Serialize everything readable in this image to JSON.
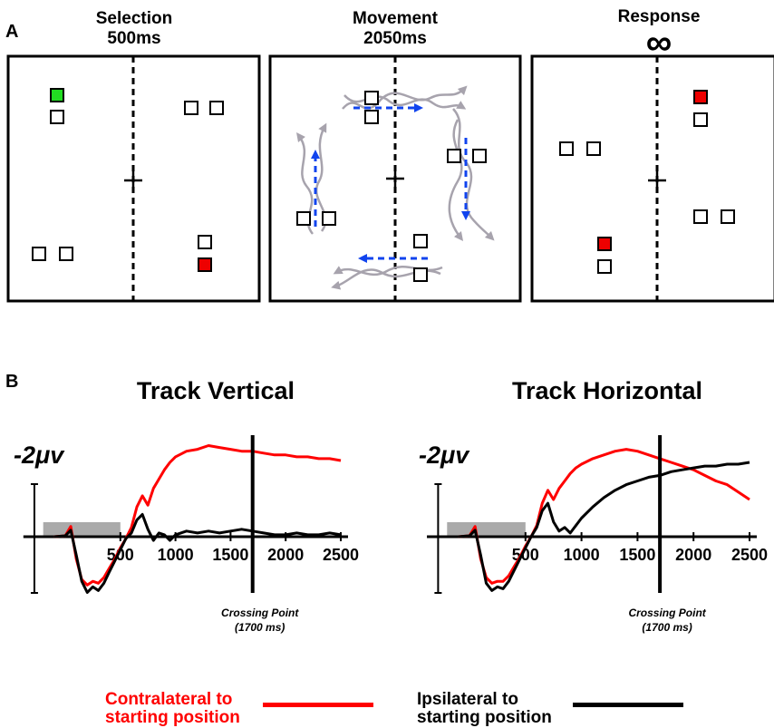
{
  "panel_a": {
    "label": "A",
    "panels": [
      {
        "title": "Selection",
        "duration": "500ms"
      },
      {
        "title": "Movement",
        "duration": "2050ms"
      },
      {
        "title": "Response",
        "duration": "∞"
      }
    ]
  },
  "panel_b": {
    "label": "B",
    "plots": [
      {
        "title": "Track Vertical",
        "scale_label": "-2μv",
        "x_ticks": [
          "500",
          "1000",
          "1500",
          "2000",
          "2500"
        ],
        "annotation_line1": "Crossing Point",
        "annotation_line2": "(1700 ms)"
      },
      {
        "title": "Track Horizontal",
        "scale_label": "-2μv",
        "x_ticks": [
          "500",
          "1000",
          "1500",
          "2000",
          "2500"
        ],
        "annotation_line1": "Crossing Point",
        "annotation_line2": "(1700 ms)"
      }
    ]
  },
  "legend": {
    "contra_line1": "Contralateral to",
    "contra_line2": "starting position",
    "ipsi_line1": "Ipsilateral to",
    "ipsi_line2": "starting position"
  },
  "colors": {
    "contralateral": "#ff0000",
    "ipsilateral": "#000000",
    "target_green": "#22dd22",
    "target_red": "#ee0000",
    "movement_arrow": "#1144ee",
    "trajectory": "#a7a3ad",
    "gray_bar": "#aaaaaa"
  },
  "chart_data": [
    {
      "type": "line",
      "title": "Track Vertical",
      "ylabel": "-2μv",
      "x_ticks": [
        500,
        1000,
        1500,
        2000,
        2500
      ],
      "xlim": [
        -200,
        2500
      ],
      "marker_x": 1700,
      "series": [
        {
          "name": "Contralateral to starting position",
          "x": [
            -100,
            0,
            50,
            100,
            150,
            200,
            250,
            300,
            350,
            400,
            450,
            500,
            550,
            600,
            650,
            700,
            750,
            800,
            850,
            900,
            950,
            1000,
            1100,
            1200,
            1300,
            1400,
            1500,
            1600,
            1700,
            1800,
            1900,
            2000,
            2100,
            2200,
            2300,
            2400,
            2500
          ],
          "y": [
            0,
            0.05,
            0.55,
            -1.2,
            -2.3,
            -2.6,
            -2.4,
            -2.5,
            -2.2,
            -1.7,
            -1.2,
            -0.6,
            -0.1,
            0.5,
            1.6,
            2.2,
            1.7,
            2.6,
            3.1,
            3.6,
            4.0,
            4.3,
            4.6,
            4.7,
            4.9,
            4.8,
            4.7,
            4.6,
            4.6,
            4.5,
            4.4,
            4.4,
            4.3,
            4.3,
            4.2,
            4.2,
            4.1
          ]
        },
        {
          "name": "Ipsilateral to starting position",
          "x": [
            -100,
            0,
            50,
            100,
            150,
            200,
            250,
            300,
            350,
            400,
            450,
            500,
            550,
            600,
            650,
            700,
            750,
            800,
            850,
            900,
            950,
            1000,
            1100,
            1200,
            1300,
            1400,
            1500,
            1600,
            1700,
            1800,
            1900,
            2000,
            2100,
            2200,
            2300,
            2400,
            2500
          ],
          "y": [
            0,
            0.05,
            0.35,
            -1.0,
            -2.4,
            -3.0,
            -2.7,
            -2.9,
            -2.5,
            -1.9,
            -1.3,
            -0.7,
            -0.1,
            0.2,
            0.9,
            1.2,
            0.4,
            -0.2,
            0.2,
            0.1,
            -0.2,
            0.1,
            0.3,
            0.2,
            0.3,
            0.2,
            0.3,
            0.4,
            0.3,
            0.2,
            0.1,
            0.1,
            0.2,
            0.1,
            0.1,
            0.2,
            0.1
          ]
        }
      ]
    },
    {
      "type": "line",
      "title": "Track Horizontal",
      "ylabel": "-2μv",
      "x_ticks": [
        500,
        1000,
        1500,
        2000,
        2500
      ],
      "xlim": [
        -200,
        2500
      ],
      "marker_x": 1700,
      "series": [
        {
          "name": "Contralateral to starting position",
          "x": [
            -100,
            0,
            50,
            100,
            150,
            200,
            250,
            300,
            350,
            400,
            450,
            500,
            550,
            600,
            650,
            700,
            750,
            800,
            850,
            900,
            950,
            1000,
            1100,
            1200,
            1300,
            1400,
            1500,
            1600,
            1700,
            1800,
            1900,
            2000,
            2100,
            2200,
            2300,
            2400,
            2500
          ],
          "y": [
            0,
            0.05,
            0.55,
            -1.2,
            -2.2,
            -2.5,
            -2.4,
            -2.4,
            -2.1,
            -1.6,
            -1.1,
            -0.5,
            0,
            0.6,
            1.8,
            2.5,
            2.0,
            2.6,
            3.0,
            3.4,
            3.7,
            3.9,
            4.2,
            4.4,
            4.6,
            4.7,
            4.6,
            4.4,
            4.2,
            4.0,
            3.8,
            3.6,
            3.3,
            3.0,
            2.8,
            2.4,
            2.0
          ]
        },
        {
          "name": "Ipsilateral to starting position",
          "x": [
            -100,
            0,
            50,
            100,
            150,
            200,
            250,
            300,
            350,
            400,
            450,
            500,
            550,
            600,
            650,
            700,
            750,
            800,
            850,
            900,
            950,
            1000,
            1100,
            1200,
            1300,
            1400,
            1500,
            1600,
            1700,
            1800,
            1900,
            2000,
            2100,
            2200,
            2300,
            2400,
            2500
          ],
          "y": [
            0,
            0.05,
            0.35,
            -1.0,
            -2.5,
            -2.9,
            -2.7,
            -2.8,
            -2.4,
            -1.8,
            -1.2,
            -0.6,
            0,
            0.5,
            1.4,
            1.8,
            0.8,
            0.3,
            0.5,
            0.2,
            0.6,
            1.0,
            1.6,
            2.1,
            2.5,
            2.8,
            3.0,
            3.2,
            3.3,
            3.5,
            3.6,
            3.7,
            3.8,
            3.8,
            3.9,
            3.9,
            4.0
          ]
        }
      ]
    }
  ]
}
